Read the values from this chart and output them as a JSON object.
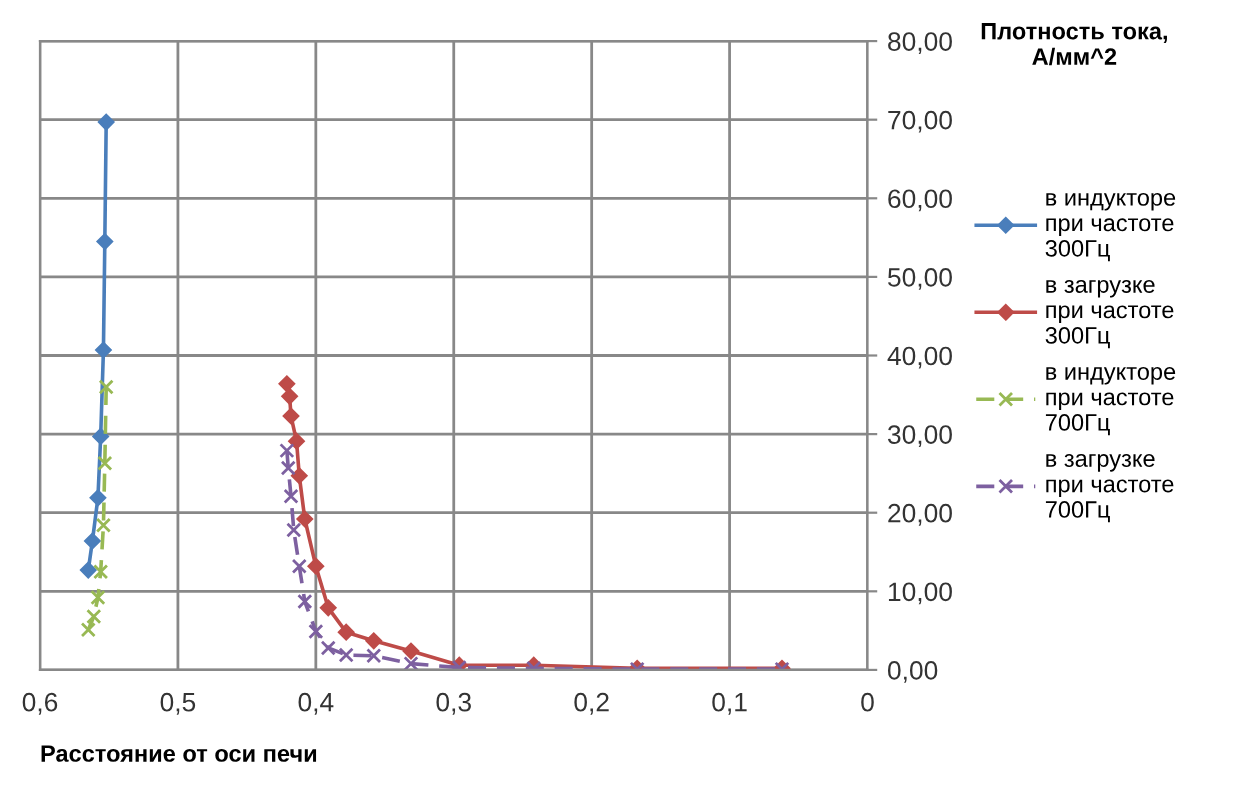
{
  "chart_data": {
    "type": "line",
    "xlabel": "Расстояние от оси печи",
    "ylabel": "Плотность тока,\nА/мм^2",
    "xlim": [
      0.6,
      0
    ],
    "ylim": [
      0,
      80
    ],
    "xticks": [
      {
        "value": 0.6,
        "label": "0,6"
      },
      {
        "value": 0.5,
        "label": "0,5"
      },
      {
        "value": 0.4,
        "label": "0,4"
      },
      {
        "value": 0.3,
        "label": "0,3"
      },
      {
        "value": 0.2,
        "label": "0,2"
      },
      {
        "value": 0.1,
        "label": "0,1"
      },
      {
        "value": 0,
        "label": "0"
      }
    ],
    "yticks": [
      {
        "value": 0,
        "label": "0,00"
      },
      {
        "value": 10,
        "label": "10,00"
      },
      {
        "value": 20,
        "label": "20,00"
      },
      {
        "value": 30,
        "label": "30,00"
      },
      {
        "value": 40,
        "label": "40,00"
      },
      {
        "value": 50,
        "label": "50,00"
      },
      {
        "value": 60,
        "label": "60,00"
      },
      {
        "value": 70,
        "label": "70,00"
      },
      {
        "value": 80,
        "label": "80,00"
      }
    ],
    "grid": true,
    "legend": "right",
    "series": [
      {
        "name": "в индукторе при частоте 300Гц",
        "color": "#4a7ebb",
        "marker": "diamond",
        "line_style": "solid",
        "x": [
          0.552,
          0.553,
          0.554,
          0.556,
          0.558,
          0.562,
          0.565
        ],
        "values": [
          69.7,
          54.5,
          40.7,
          29.7,
          21.9,
          16.4,
          12.7
        ]
      },
      {
        "name": "в загрузке при частоте 300Гц",
        "color": "#be4b48",
        "marker": "diamond",
        "line_style": "solid",
        "x": [
          0.421,
          0.419,
          0.418,
          0.414,
          0.412,
          0.408,
          0.4,
          0.391,
          0.378,
          0.358,
          0.331,
          0.296,
          0.242,
          0.167,
          0.062
        ],
        "values": [
          36.4,
          34.8,
          32.3,
          29.1,
          24.7,
          19.2,
          13.2,
          7.9,
          4.8,
          3.7,
          2.4,
          0.6,
          0.6,
          0.2,
          0.2
        ]
      },
      {
        "name": "в индукторе при частоте 700Гц",
        "color": "#98b954",
        "marker": "cross",
        "line_style": "dashed",
        "x": [
          0.552,
          0.553,
          0.554,
          0.556,
          0.558,
          0.561,
          0.565
        ],
        "values": [
          36.0,
          26.3,
          18.4,
          12.5,
          9.2,
          6.8,
          5.1
        ]
      },
      {
        "name": "в загрузке при частоте 700Гц",
        "color": "#7d60a0",
        "marker": "cross",
        "line_style": "dashed",
        "x": [
          0.421,
          0.42,
          0.418,
          0.416,
          0.412,
          0.408,
          0.4,
          0.391,
          0.378,
          0.358,
          0.331,
          0.296,
          0.242,
          0.167,
          0.062
        ],
        "values": [
          27.9,
          25.7,
          22.1,
          17.8,
          13.2,
          8.7,
          4.9,
          2.8,
          1.9,
          1.8,
          0.8,
          0.3,
          0.2,
          0.1,
          0.1
        ]
      }
    ]
  }
}
